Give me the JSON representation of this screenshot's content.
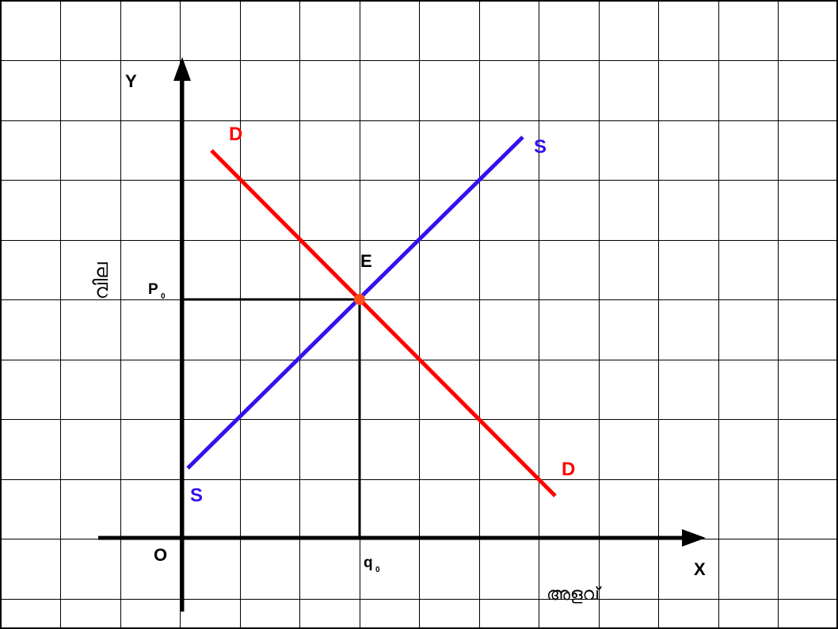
{
  "diagram": {
    "grid": true,
    "axis_labels": {
      "y": "Y",
      "x": "X",
      "origin": "O"
    },
    "axis_titles": {
      "y": "വില",
      "x": "അളവ്"
    },
    "equilibrium": {
      "label": "E",
      "price_label": "P",
      "price_sub": "0",
      "quantity_label": "q",
      "quantity_sub": "0"
    },
    "demand": {
      "label_top": "D",
      "label_bottom": "D",
      "color": "#ff0000"
    },
    "supply": {
      "label_top": "S",
      "label_bottom": "S",
      "color": "#3311ee"
    },
    "point_color": "#ff4a1a"
  }
}
